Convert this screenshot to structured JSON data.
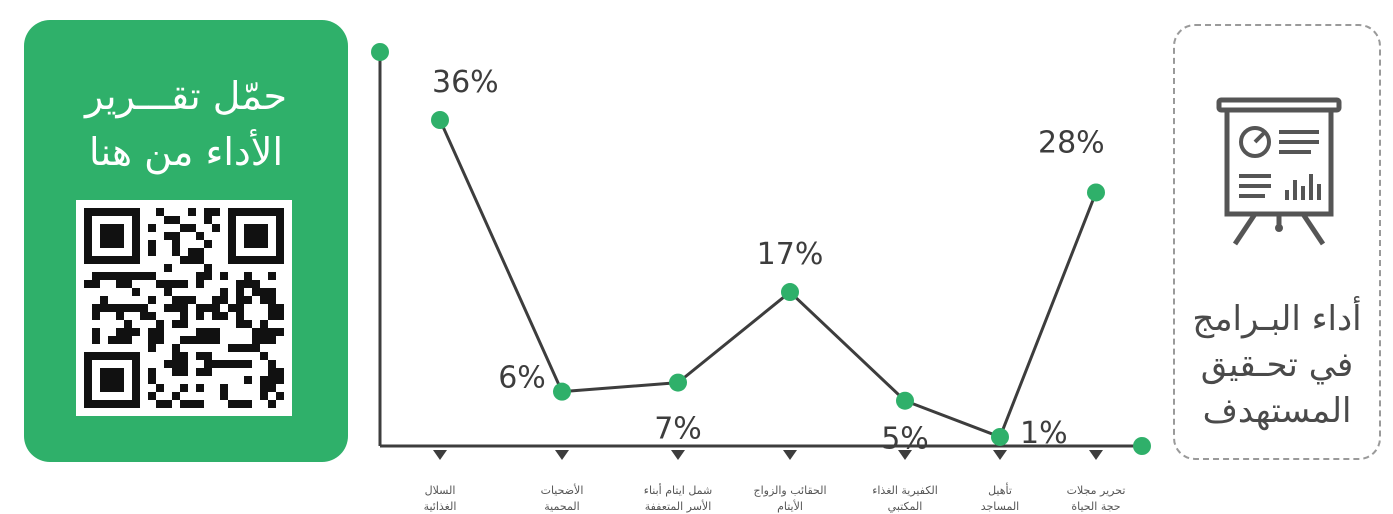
{
  "qr_card": {
    "title_line1": "حمّل تقـــرير",
    "title_line2": "الأداء من هنا",
    "bg_color": "#2fb06a",
    "icon": "qr-code-icon"
  },
  "target_card": {
    "title_line1": "أداء البـرامج",
    "title_line2": "في تحـقيق",
    "title_line3": "المستهدف",
    "icon": "presentation-board-icon"
  },
  "chart_data": {
    "type": "line",
    "title": "",
    "xlabel": "",
    "ylabel": "",
    "ylim": [
      0,
      40
    ],
    "grid": false,
    "legend": "none",
    "line_color": "#3d3d3d",
    "point_color": "#2fb06a",
    "categories": [
      "السلال الغذائية",
      "الأضحيات المحمية",
      "شمل ايتام أبناء الأسر المتعففة",
      "الحقائب والزواج الأيتام",
      "الكفيرية الغذاء المكتبي",
      "تأهيل المساجد",
      "تحرير مجلات حجة الحياة"
    ],
    "series": [
      {
        "values": [
          36,
          6,
          7,
          17,
          5,
          1,
          28
        ],
        "labels": [
          "36%",
          "6%",
          "7%",
          "17%",
          "5%",
          "1%",
          "28%"
        ]
      }
    ]
  }
}
